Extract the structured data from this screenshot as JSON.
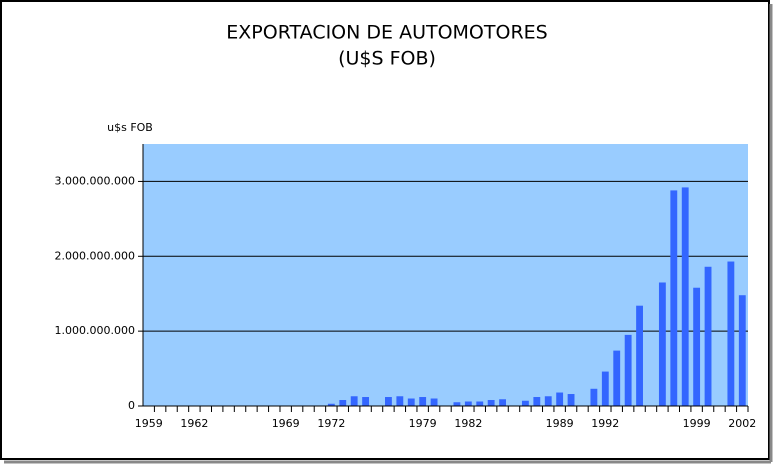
{
  "chart_data": {
    "type": "bar",
    "title": "EXPORTACION DE AUTOMOTORES",
    "subtitle": "(U$S FOB)",
    "y_label": "u$s FOB",
    "categories": [
      "1959",
      null,
      null,
      null,
      "1962",
      null,
      null,
      null,
      null,
      null,
      null,
      null,
      "1969",
      null,
      null,
      null,
      "1972",
      null,
      null,
      null,
      null,
      null,
      null,
      null,
      "1979",
      null,
      null,
      null,
      "1982",
      null,
      null,
      null,
      null,
      null,
      null,
      null,
      "1989",
      null,
      null,
      null,
      "1992",
      null,
      null,
      null,
      null,
      null,
      null,
      null,
      "1999",
      null,
      null,
      null,
      "2002"
    ],
    "values": [
      0,
      0,
      null,
      0,
      0,
      0,
      0,
      0,
      null,
      0,
      0,
      0,
      0,
      0,
      null,
      0,
      30000000,
      80000000,
      130000000,
      120000000,
      null,
      120000000,
      130000000,
      100000000,
      120000000,
      100000000,
      null,
      50000000,
      60000000,
      60000000,
      80000000,
      90000000,
      null,
      70000000,
      120000000,
      130000000,
      180000000,
      160000000,
      null,
      230000000,
      460000000,
      740000000,
      950000000,
      1340000000,
      null,
      1650000000,
      2880000000,
      2920000000,
      1580000000,
      1860000000,
      null,
      1930000000,
      1480000000
    ],
    "color": "#3366ff",
    "plot_background": "#99ccff",
    "ylim": [
      0,
      3500000000
    ],
    "yticks": [
      0,
      {
        "value": 1000000000,
        "label": "1.000.000.000"
      },
      {
        "value": 2000000000,
        "label": "2.000.000.000"
      },
      {
        "value": 3000000000,
        "label": "3.000.000.000"
      }
    ],
    "grid": true
  }
}
